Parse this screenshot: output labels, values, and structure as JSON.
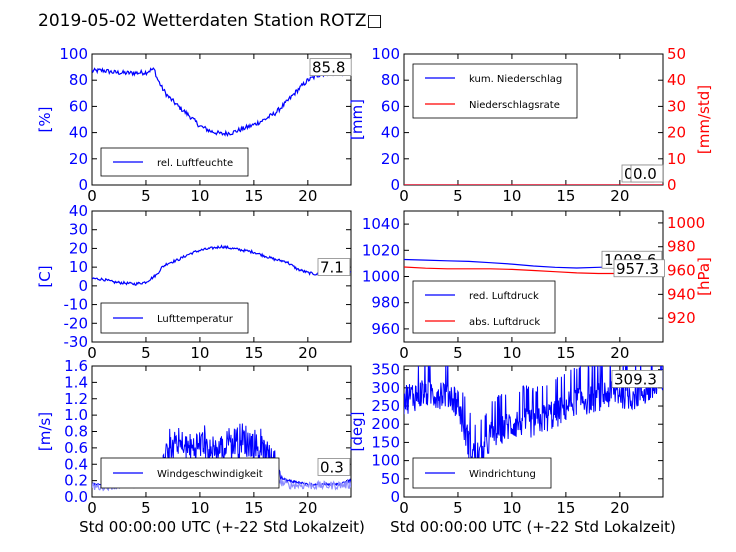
{
  "title": "2019-05-02 Wetterdaten Station ROTZ□",
  "colors": {
    "blue": "#0000ff",
    "red": "#ff0000",
    "light_blue": "#8c8cff",
    "black": "#000000"
  },
  "chart_data": [
    {
      "id": "humidity",
      "type": "line",
      "ylabel": "[%]",
      "xlim": [
        0,
        24
      ],
      "ylim": [
        0,
        100
      ],
      "yticks": [
        0,
        20,
        40,
        60,
        80,
        100
      ],
      "xticks": [
        0,
        5,
        10,
        15,
        20
      ],
      "legend": "bottom-left",
      "series": [
        {
          "name": "rel. Luftfeuchte",
          "axis": "left",
          "color": "#0000ff",
          "x": [
            0,
            1,
            2,
            3,
            4,
            5,
            5.5,
            5.8,
            6,
            6.5,
            7,
            8,
            9,
            10,
            11,
            12,
            13,
            14,
            15,
            16,
            17,
            18,
            19,
            20,
            21,
            22,
            23,
            24
          ],
          "y": [
            87,
            87.5,
            86,
            85.5,
            85.5,
            86,
            88,
            88,
            82,
            74,
            68,
            60,
            53,
            45,
            41,
            39,
            40,
            43,
            46,
            50,
            55,
            63,
            72,
            80,
            84,
            85.5,
            85.8,
            85.8
          ],
          "noise": 1.8
        }
      ],
      "readouts": [
        {
          "text": "85.8",
          "y": 85.8,
          "axis": "left"
        }
      ]
    },
    {
      "id": "precipitation",
      "type": "line",
      "ylabel": "[mm]",
      "ylabel_right": "[mm/std]",
      "xlim": [
        0,
        24
      ],
      "ylim": [
        0,
        100
      ],
      "ylim_right": [
        0,
        50
      ],
      "yticks": [
        0,
        20,
        40,
        60,
        80,
        100
      ],
      "yticks_right": [
        0,
        10,
        20,
        30,
        40,
        50
      ],
      "xticks": [
        0,
        5,
        10,
        15,
        20
      ],
      "legend": "top-left",
      "series": [
        {
          "name": "kum. Niederschlag",
          "axis": "left",
          "color": "#0000ff",
          "x": [
            0,
            24
          ],
          "y": [
            0,
            0
          ]
        },
        {
          "name": "Niederschlagsrate",
          "axis": "right",
          "color": "#ff0000",
          "x": [
            0,
            24
          ],
          "y": [
            0,
            0
          ]
        }
      ],
      "readouts": [
        {
          "text": "0.0",
          "y": 0,
          "axis": "left"
        },
        {
          "text": "0.0",
          "y": 0,
          "axis": "right"
        }
      ]
    },
    {
      "id": "temperature",
      "type": "line",
      "ylabel": "[C]",
      "xlim": [
        0,
        24
      ],
      "ylim": [
        -30,
        40
      ],
      "yticks": [
        -30,
        -20,
        -10,
        0,
        10,
        20,
        30,
        40
      ],
      "xticks": [
        0,
        5,
        10,
        15,
        20
      ],
      "legend": "bottom-left",
      "series": [
        {
          "name": "Lufttemperatur",
          "axis": "left",
          "color": "#0000ff",
          "x": [
            0,
            1,
            2,
            3,
            4,
            5,
            6,
            6.5,
            7,
            8,
            9,
            10,
            11,
            12,
            13,
            14,
            15,
            16,
            17,
            18,
            19,
            20,
            21,
            22,
            23,
            24
          ],
          "y": [
            4,
            3.5,
            2,
            1.5,
            1,
            2,
            6,
            10,
            12,
            14,
            17,
            19,
            20,
            21,
            20,
            19,
            18,
            16,
            14,
            13,
            9,
            7,
            6,
            6.5,
            7,
            7.1
          ],
          "noise": 0.7
        }
      ],
      "readouts": [
        {
          "text": "7.1",
          "y": 7.1,
          "axis": "left"
        }
      ]
    },
    {
      "id": "pressure",
      "type": "line",
      "ylabel": "",
      "ylabel_right": "[hPa]",
      "xlim": [
        0,
        24
      ],
      "ylim": [
        950,
        1050
      ],
      "ylim_right": [
        900,
        1010
      ],
      "yticks": [
        960,
        980,
        1000,
        1020,
        1040
      ],
      "yticks_right": [
        920,
        940,
        960,
        980,
        1000
      ],
      "xticks": [
        0,
        5,
        10,
        15,
        20
      ],
      "legend": "bottom-left",
      "series": [
        {
          "name": "red. Luftdruck",
          "axis": "left",
          "color": "#0000ff",
          "x": [
            0,
            2,
            4,
            6,
            8,
            10,
            12,
            14,
            16,
            18,
            20,
            22,
            24
          ],
          "y": [
            1013,
            1012.5,
            1012,
            1011.5,
            1010.5,
            1009.5,
            1008,
            1007,
            1006.5,
            1007,
            1007.5,
            1008,
            1008.6
          ]
        },
        {
          "name": "abs. Luftdruck",
          "axis": "right",
          "color": "#ff0000",
          "x": [
            0,
            2,
            4,
            6,
            8,
            10,
            12,
            14,
            16,
            18,
            20,
            22,
            24
          ],
          "y": [
            963,
            962,
            961.5,
            961.5,
            961.5,
            961,
            960,
            959,
            958,
            957.5,
            957.5,
            957.3,
            957.3
          ]
        }
      ],
      "readouts": [
        {
          "text": "1008.6",
          "y": 1008.6,
          "axis": "left"
        },
        {
          "text": "957.3",
          "y": 957.3,
          "axis": "right"
        }
      ]
    },
    {
      "id": "wind_speed",
      "type": "line",
      "ylabel": "[m/s]",
      "xlim": [
        0,
        24
      ],
      "ylim": [
        0,
        1.6
      ],
      "yticks": [
        0.0,
        0.2,
        0.4,
        0.6,
        0.8,
        1.0,
        1.2,
        1.4,
        1.6
      ],
      "xticks": [
        0,
        5,
        10,
        15,
        20
      ],
      "legend": "bottom-left",
      "xlabel": "Std 00:00:00 UTC (+-22 Std Lokalzeit)",
      "series": [
        {
          "name": "Windgeschwindigkeit",
          "axis": "left",
          "color": "#0000ff",
          "x": [
            0,
            1,
            2,
            3,
            4,
            5,
            6,
            6.5,
            7,
            8,
            9,
            10,
            11,
            12,
            13,
            14,
            15,
            16,
            17,
            17.5,
            18,
            19,
            20,
            21,
            22,
            23,
            24
          ],
          "y": [
            0.15,
            0.15,
            0.18,
            0.2,
            0.22,
            0.2,
            0.25,
            0.35,
            0.5,
            0.6,
            0.55,
            0.6,
            0.5,
            0.55,
            0.6,
            0.65,
            0.6,
            0.5,
            0.4,
            0.25,
            0.2,
            0.18,
            0.15,
            0.15,
            0.15,
            0.15,
            0.2
          ],
          "noise": 0.3,
          "spiky": true
        },
        {
          "name": "",
          "axis": "left",
          "color": "#8c8cff",
          "x": [
            0,
            2,
            4,
            6,
            6.5,
            7,
            9,
            11,
            13,
            15,
            16,
            17,
            17.5,
            18,
            20,
            22,
            24
          ],
          "y": [
            0.12,
            0.14,
            0.16,
            0.18,
            0.25,
            0.3,
            0.35,
            0.35,
            0.33,
            0.32,
            0.3,
            0.25,
            0.18,
            0.15,
            0.14,
            0.14,
            0.15
          ],
          "noise": 0.05
        }
      ],
      "readouts": [
        {
          "text": "0.3",
          "y": 0.3,
          "axis": "left"
        }
      ]
    },
    {
      "id": "wind_direction",
      "type": "line",
      "ylabel": "[deg]",
      "xlim": [
        0,
        24
      ],
      "ylim": [
        0,
        360
      ],
      "yticks": [
        0,
        50,
        100,
        150,
        200,
        250,
        300,
        350
      ],
      "xticks": [
        0,
        5,
        10,
        15,
        20
      ],
      "legend": "bottom-left",
      "xlabel": "Std 00:00:00 UTC (+-22 Std Lokalzeit)",
      "series": [
        {
          "name": "Windrichtung",
          "axis": "left",
          "color": "#0000ff",
          "x": [
            0,
            1,
            2,
            3,
            4,
            5,
            5.5,
            6,
            6.5,
            7,
            7.5,
            8,
            9,
            10,
            11,
            12,
            13,
            14,
            15,
            16,
            17,
            18,
            19,
            20,
            21,
            22,
            23,
            24
          ],
          "y": [
            270,
            280,
            290,
            285,
            290,
            260,
            200,
            150,
            120,
            110,
            130,
            170,
            190,
            200,
            210,
            205,
            220,
            230,
            250,
            270,
            270,
            280,
            285,
            290,
            280,
            290,
            300,
            309
          ],
          "noise": 45,
          "spiky": true
        }
      ],
      "readouts": [
        {
          "text": "309.3",
          "y": 309.3,
          "axis": "left"
        }
      ]
    }
  ]
}
